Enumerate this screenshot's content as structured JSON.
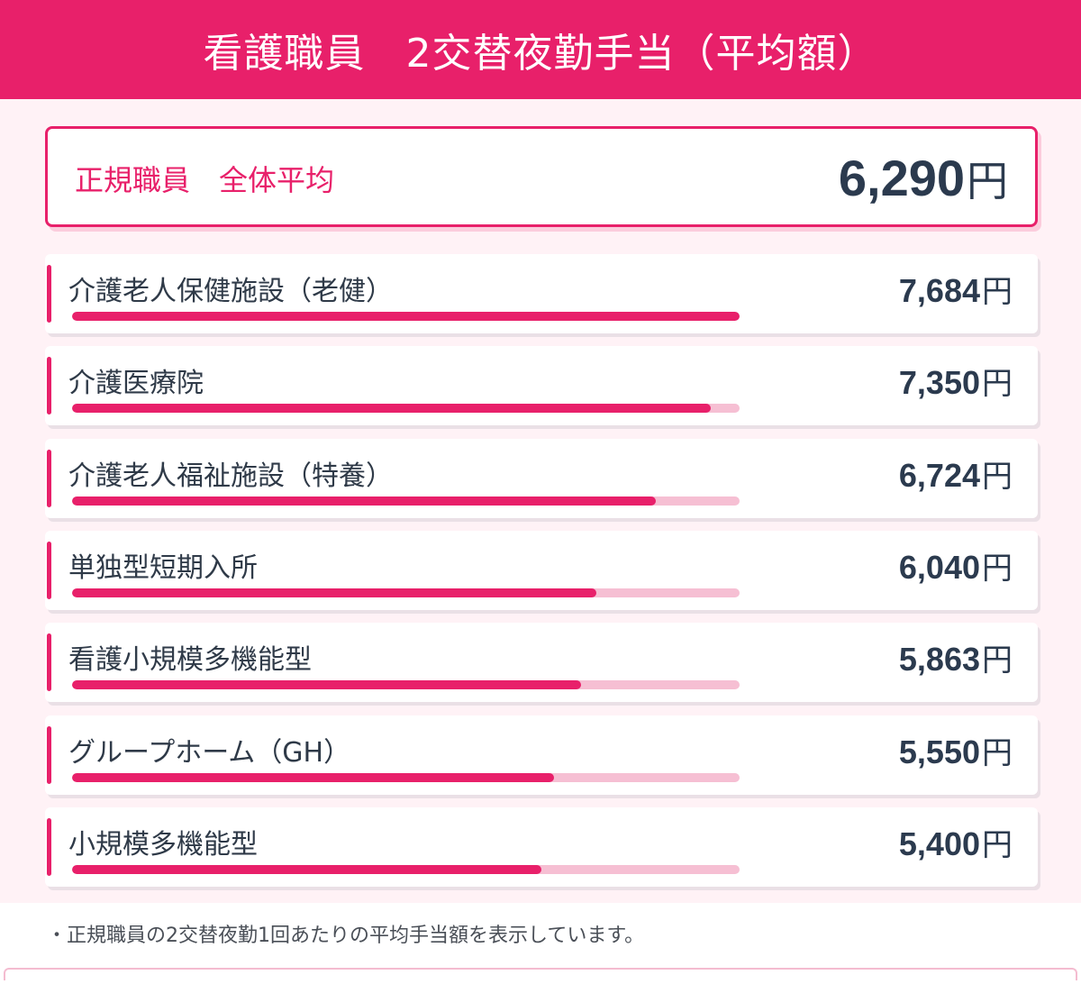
{
  "header": {
    "title": "看護職員　2交替夜勤手当（平均額）"
  },
  "summary": {
    "label": "正規職員　全体平均",
    "value": "6,290",
    "unit": "円"
  },
  "colors": {
    "accent": "#e8206a",
    "track": "#f6bfd3",
    "panel": "#fff2f6",
    "value_text": "#2b3a4e"
  },
  "chart_data": {
    "type": "bar",
    "orientation": "horizontal",
    "unit": "円",
    "scale_max": 7684,
    "categories": [
      "介護老人保健施設（老健）",
      "介護医療院",
      "介護老人福祉施設（特養）",
      "単独型短期入所",
      "看護小規模多機能型",
      "グループホーム（GH）",
      "小規模多機能型"
    ],
    "values": [
      7684,
      7350,
      6724,
      6040,
      5863,
      5550,
      5400
    ],
    "value_labels": [
      "7,684",
      "7,350",
      "6,724",
      "6,040",
      "5,863",
      "5,550",
      "5,400"
    ]
  },
  "footnote": "・正規職員の2交替夜勤1回あたりの平均手当額を表示しています。"
}
